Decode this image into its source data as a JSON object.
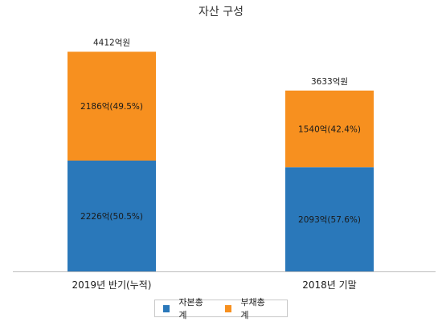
{
  "chart_data": {
    "type": "bar",
    "stacked": true,
    "title": "자산 구성",
    "categories": [
      "2019년 반기(누적)",
      "2018년 기말"
    ],
    "series": [
      {
        "name": "자본총계",
        "color": "#2a78ba",
        "values": [
          2226,
          2093
        ],
        "labels": [
          "2226억(50.5%)",
          "2093억(57.6%)"
        ]
      },
      {
        "name": "부채총계",
        "color": "#f7901f",
        "values": [
          2186,
          1540
        ],
        "labels": [
          "2186억(49.5%)",
          "1540억(42.4%)"
        ]
      }
    ],
    "totals": [
      4412,
      3633
    ],
    "total_labels": [
      "4412억원",
      "3633억원"
    ],
    "ylim": [
      0,
      5000
    ],
    "grid": false,
    "legend": "bottom"
  }
}
